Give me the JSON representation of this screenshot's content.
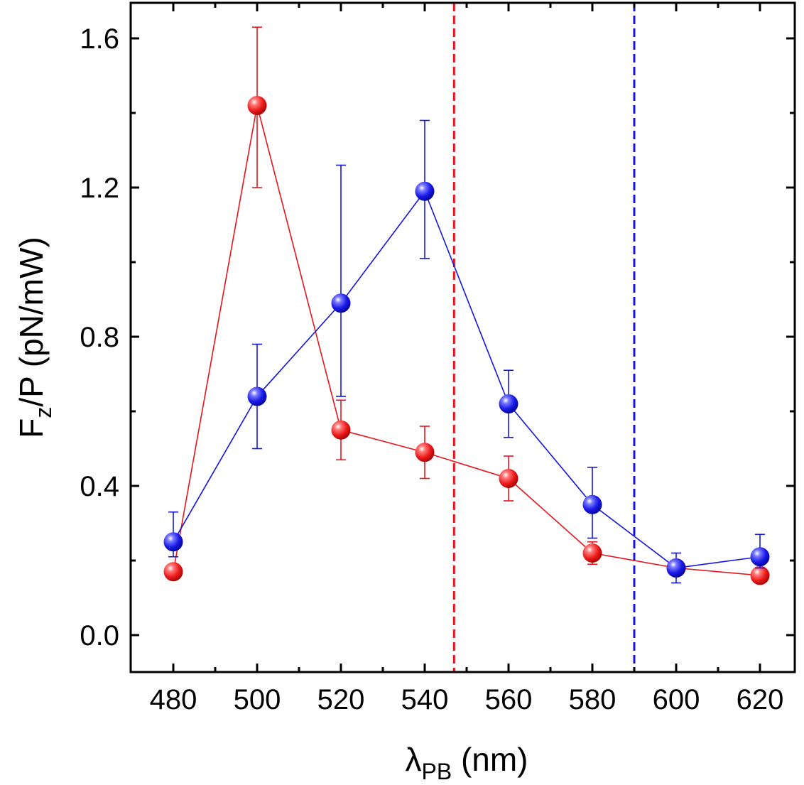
{
  "chart_data": {
    "type": "scatter",
    "title": "",
    "xlabel": "λ",
    "xlabel_sub": "PB",
    "xlabel_unit": " (nm)",
    "ylabel": "F",
    "ylabel_sub": "z",
    "ylabel_rest": "/P (pN/mW)",
    "xlim": [
      470,
      630
    ],
    "ylim": [
      -0.1,
      1.7
    ],
    "xticks": [
      480,
      500,
      520,
      540,
      560,
      580,
      600,
      620
    ],
    "xtick_labels": [
      "480",
      "500",
      "520",
      "540",
      "560",
      "580",
      "600",
      "620"
    ],
    "yticks": [
      0.0,
      0.4,
      0.8,
      1.2,
      1.6
    ],
    "ytick_labels": [
      "0.0",
      "0.4",
      "0.8",
      "1.2",
      "1.6"
    ],
    "vlines": [
      {
        "x": 547,
        "color": "#e8131b",
        "style": "dashed"
      },
      {
        "x": 590,
        "color": "#1414e0",
        "style": "dashed"
      }
    ],
    "series": [
      {
        "name": "blue",
        "color": "#1414e0",
        "x": [
          480,
          500,
          520,
          540,
          560,
          580,
          600,
          620
        ],
        "y": [
          0.25,
          0.64,
          0.89,
          1.19,
          0.62,
          0.35,
          0.18,
          0.21
        ],
        "err_low": [
          0.21,
          0.5,
          0.64,
          1.01,
          0.53,
          0.26,
          0.14,
          0.18
        ],
        "err_high": [
          0.33,
          0.78,
          1.26,
          1.38,
          0.71,
          0.45,
          0.22,
          0.27
        ]
      },
      {
        "name": "red",
        "color": "#e8131b",
        "x": [
          480,
          500,
          520,
          540,
          560,
          580,
          600,
          620
        ],
        "y": [
          0.17,
          1.42,
          0.55,
          0.49,
          0.42,
          0.22,
          0.18,
          0.16
        ],
        "err_low": [
          0.15,
          1.2,
          0.47,
          0.42,
          0.36,
          0.19,
          0.16,
          0.14
        ],
        "err_high": [
          0.19,
          1.63,
          0.63,
          0.56,
          0.48,
          0.25,
          0.2,
          0.18
        ]
      }
    ]
  }
}
